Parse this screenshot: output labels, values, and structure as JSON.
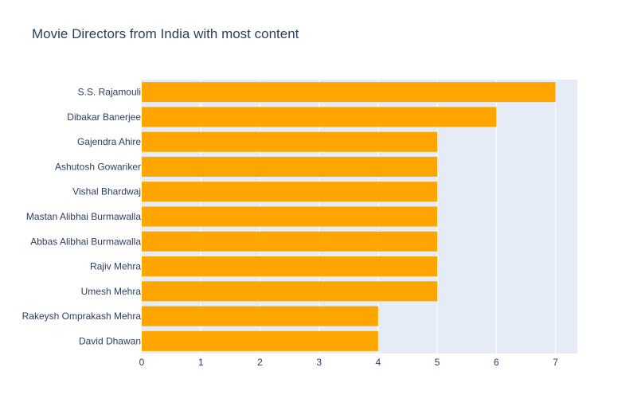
{
  "chart_data": {
    "type": "bar",
    "orientation": "horizontal",
    "title": "Movie Directors from India with most content",
    "xlabel": "",
    "ylabel": "",
    "categories": [
      "S.S. Rajamouli",
      "Dibakar Banerjee",
      "Gajendra Ahire",
      "Ashutosh Gowariker",
      "Vishal Bhardwaj",
      "Mastan Alibhai Burmawalla",
      "Abbas Alibhai Burmawalla",
      "Rajiv Mehra",
      "Umesh Mehra",
      "Rakeysh Omprakash Mehra",
      "David Dhawan"
    ],
    "values": [
      7,
      6,
      5,
      5,
      5,
      5,
      5,
      5,
      5,
      4,
      4
    ],
    "xlim": [
      0,
      7.37
    ],
    "xticks": [
      0,
      1,
      2,
      3,
      4,
      5,
      6,
      7
    ],
    "grid": true,
    "legend": "none",
    "colors": {
      "bar": "#ffa500",
      "plot_bg": "#e5ecf6",
      "grid": "#ffffff",
      "text": "#2a3f5f",
      "tick_text": "#2a3f5f"
    }
  }
}
